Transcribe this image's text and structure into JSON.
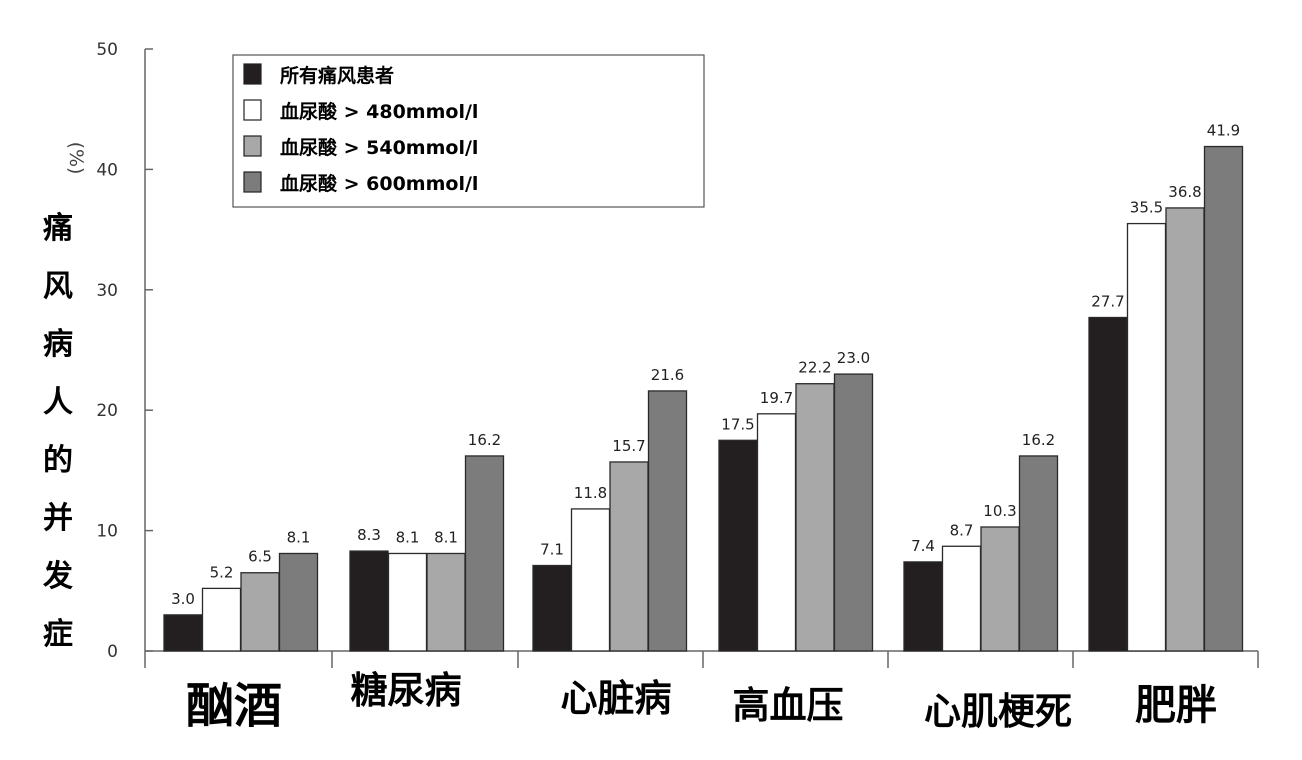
{
  "chart_data": {
    "type": "bar",
    "y_unit": "(%)",
    "ylabel": "痛风病人的并发症",
    "ylim": [
      0,
      50
    ],
    "yticks": [
      "0",
      "10",
      "20",
      "30",
      "40",
      "50"
    ],
    "categories": [
      "酗酒",
      "糖尿病",
      "心脏病",
      "高血压",
      "心肌梗死",
      "肥胖"
    ],
    "series": [
      {
        "name": "所有痛风患者",
        "color": "#231f20",
        "values": [
          3.0,
          8.3,
          7.1,
          17.5,
          7.4,
          27.7
        ],
        "labels": [
          "3.0",
          "8.3",
          "7.1",
          "17.5",
          "7.4",
          "27.7"
        ]
      },
      {
        "name": "血尿酸 > 480mmol/l",
        "color": "#ffffff",
        "values": [
          5.2,
          8.1,
          11.8,
          19.7,
          8.7,
          35.5
        ],
        "labels": [
          "5.2",
          "8.1",
          "11.8",
          "19.7",
          "8.7",
          "35.5"
        ]
      },
      {
        "name": "血尿酸 > 540mmol/l",
        "color": "#a8a8a8",
        "values": [
          6.5,
          8.1,
          15.7,
          22.2,
          10.3,
          36.8
        ],
        "labels": [
          "6.5",
          "8.1",
          "15.7",
          "22.2",
          "10.3",
          "36.8"
        ]
      },
      {
        "name": "血尿酸 > 600mmol/l",
        "color": "#7c7c7c",
        "values": [
          8.1,
          16.2,
          21.6,
          23.0,
          16.2,
          41.9
        ],
        "labels": [
          "8.1",
          "16.2",
          "21.6",
          "23.0",
          "16.2",
          "41.9"
        ]
      }
    ],
    "legend_position": "top-left",
    "grid": false
  }
}
